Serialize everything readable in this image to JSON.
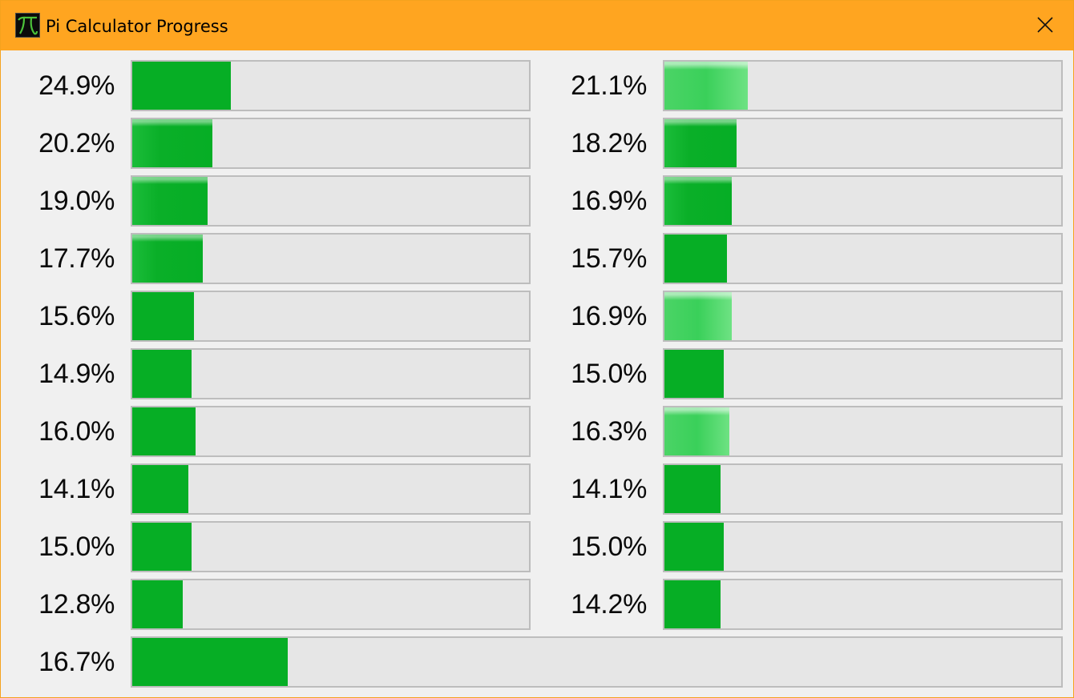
{
  "window": {
    "title": "Pi Calculator Progress",
    "icon": "pi-app-icon",
    "close_icon": "close-icon"
  },
  "colors": {
    "title_bar": "#ffa520",
    "window_border": "#f5a21e",
    "progress_fill": "#06ae25",
    "progress_track": "#e6e6e6",
    "track_border": "#bdbdbd"
  },
  "progress": {
    "left_column": [
      {
        "label": "24.9%",
        "value": 24.9
      },
      {
        "label": "20.2%",
        "value": 20.2
      },
      {
        "label": "19.0%",
        "value": 19.0
      },
      {
        "label": "17.7%",
        "value": 17.7
      },
      {
        "label": "15.6%",
        "value": 15.6
      },
      {
        "label": "14.9%",
        "value": 14.9
      },
      {
        "label": "16.0%",
        "value": 16.0
      },
      {
        "label": "14.1%",
        "value": 14.1
      },
      {
        "label": "15.0%",
        "value": 15.0
      },
      {
        "label": "12.8%",
        "value": 12.8
      }
    ],
    "right_column": [
      {
        "label": "21.1%",
        "value": 21.1
      },
      {
        "label": "18.2%",
        "value": 18.2
      },
      {
        "label": "16.9%",
        "value": 16.9
      },
      {
        "label": "15.7%",
        "value": 15.7
      },
      {
        "label": "16.9%",
        "value": 16.9
      },
      {
        "label": "15.0%",
        "value": 15.0
      },
      {
        "label": "16.3%",
        "value": 16.3
      },
      {
        "label": "14.1%",
        "value": 14.1
      },
      {
        "label": "15.0%",
        "value": 15.0
      },
      {
        "label": "14.2%",
        "value": 14.2
      }
    ],
    "total": {
      "label": "16.7%",
      "value": 16.7
    }
  }
}
